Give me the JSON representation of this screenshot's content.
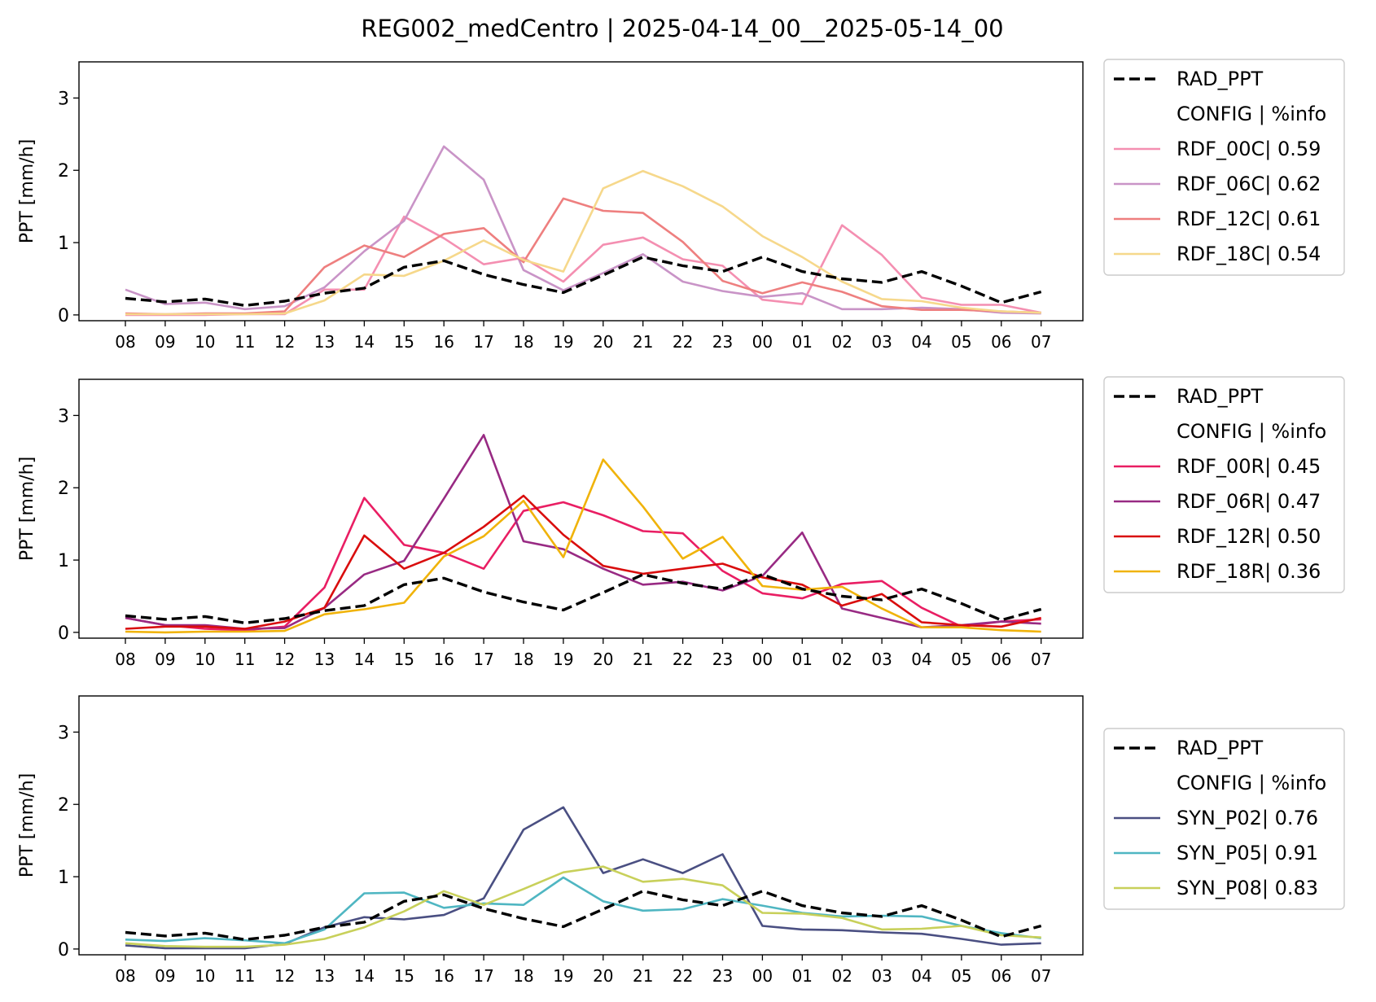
{
  "figure": {
    "title": "REG002_medCentro | 2025-04-14_00__2025-05-14_00"
  },
  "chart_data": [
    {
      "type": "line",
      "ylabel": "PPT [mm/h]",
      "ylim": [
        -0.08,
        3.5
      ],
      "yticks": [
        0,
        1,
        2,
        3
      ],
      "x": [
        "08",
        "09",
        "10",
        "11",
        "12",
        "13",
        "14",
        "15",
        "16",
        "17",
        "18",
        "19",
        "20",
        "21",
        "22",
        "23",
        "00",
        "01",
        "02",
        "03",
        "04",
        "05",
        "06",
        "07"
      ],
      "legend_header": "CONFIG  | %info",
      "legend_location": "outside-right",
      "series": [
        {
          "name": "RAD_PPT",
          "color": "#000000",
          "dashed": true,
          "values": [
            0.23,
            0.18,
            0.22,
            0.13,
            0.19,
            0.3,
            0.37,
            0.66,
            0.75,
            0.56,
            0.42,
            0.31,
            0.55,
            0.8,
            0.68,
            0.6,
            0.8,
            0.6,
            0.5,
            0.45,
            0.6,
            0.4,
            0.17,
            0.32
          ]
        },
        {
          "name": "RDF_00C| 0.59",
          "color": "#f48fb1",
          "values": [
            0.0,
            0.0,
            0.0,
            0.01,
            0.01,
            0.35,
            0.35,
            1.36,
            1.06,
            0.7,
            0.79,
            0.46,
            0.97,
            1.07,
            0.77,
            0.68,
            0.21,
            0.15,
            1.24,
            0.83,
            0.24,
            0.14,
            0.14,
            0.03
          ]
        },
        {
          "name": "RDF_06C| 0.62",
          "color": "#c994c7",
          "values": [
            0.35,
            0.15,
            0.17,
            0.08,
            0.12,
            0.38,
            0.88,
            1.3,
            2.33,
            1.87,
            0.62,
            0.34,
            0.58,
            0.84,
            0.46,
            0.33,
            0.25,
            0.3,
            0.08,
            0.08,
            0.1,
            0.08,
            0.03,
            0.02
          ]
        },
        {
          "name": "RDF_12C| 0.61",
          "color": "#ee7f7f",
          "values": [
            0.02,
            0.01,
            0.02,
            0.02,
            0.05,
            0.66,
            0.96,
            0.8,
            1.12,
            1.2,
            0.73,
            1.61,
            1.44,
            1.41,
            1.01,
            0.47,
            0.3,
            0.45,
            0.32,
            0.12,
            0.07,
            0.07,
            0.05,
            0.03
          ]
        },
        {
          "name": "RDF_18C| 0.54",
          "color": "#f6d88b",
          "values": [
            0.01,
            0.01,
            0.01,
            0.01,
            0.02,
            0.2,
            0.56,
            0.54,
            0.75,
            1.03,
            0.76,
            0.6,
            1.75,
            1.99,
            1.78,
            1.5,
            1.09,
            0.8,
            0.46,
            0.22,
            0.19,
            0.1,
            0.05,
            0.03
          ]
        }
      ]
    },
    {
      "type": "line",
      "ylabel": "PPT [mm/h]",
      "ylim": [
        -0.08,
        3.5
      ],
      "yticks": [
        0,
        1,
        2,
        3
      ],
      "x": [
        "08",
        "09",
        "10",
        "11",
        "12",
        "13",
        "14",
        "15",
        "16",
        "17",
        "18",
        "19",
        "20",
        "21",
        "22",
        "23",
        "00",
        "01",
        "02",
        "03",
        "04",
        "05",
        "06",
        "07"
      ],
      "legend_header": "CONFIG  | %info",
      "legend_location": "outside-right",
      "series": [
        {
          "name": "RAD_PPT",
          "color": "#000000",
          "dashed": true,
          "values": [
            0.23,
            0.18,
            0.22,
            0.13,
            0.19,
            0.3,
            0.37,
            0.66,
            0.75,
            0.56,
            0.42,
            0.31,
            0.55,
            0.8,
            0.68,
            0.6,
            0.8,
            0.6,
            0.5,
            0.45,
            0.6,
            0.4,
            0.17,
            0.32
          ]
        },
        {
          "name": "RDF_00R| 0.45",
          "color": "#e91e63",
          "values": [
            0.2,
            0.1,
            0.05,
            0.03,
            0.08,
            0.62,
            1.86,
            1.21,
            1.1,
            0.88,
            1.68,
            1.8,
            1.62,
            1.4,
            1.37,
            0.85,
            0.54,
            0.47,
            0.67,
            0.71,
            0.34,
            0.08,
            0.15,
            0.18
          ]
        },
        {
          "name": "RDF_06R| 0.47",
          "color": "#982a83",
          "values": [
            0.2,
            0.1,
            0.1,
            0.05,
            0.06,
            0.34,
            0.8,
            0.99,
            1.85,
            2.73,
            1.26,
            1.15,
            0.88,
            0.66,
            0.7,
            0.58,
            0.78,
            1.38,
            0.33,
            0.2,
            0.07,
            0.1,
            0.15,
            0.12
          ]
        },
        {
          "name": "RDF_12R| 0.50",
          "color": "#d90d0d",
          "values": [
            0.05,
            0.08,
            0.08,
            0.05,
            0.15,
            0.34,
            1.34,
            0.88,
            1.1,
            1.46,
            1.89,
            1.35,
            0.92,
            0.81,
            0.88,
            0.95,
            0.76,
            0.66,
            0.37,
            0.53,
            0.14,
            0.1,
            0.08,
            0.2
          ]
        },
        {
          "name": "RDF_18R| 0.36",
          "color": "#f0b30a",
          "values": [
            0.01,
            0.0,
            0.01,
            0.01,
            0.02,
            0.25,
            0.32,
            0.41,
            1.05,
            1.33,
            1.82,
            1.04,
            2.39,
            1.74,
            1.02,
            1.32,
            0.64,
            0.59,
            0.63,
            0.33,
            0.07,
            0.07,
            0.03,
            0.01
          ]
        }
      ]
    },
    {
      "type": "line",
      "ylabel": "PPT [mm/h]",
      "ylim": [
        -0.08,
        3.5
      ],
      "yticks": [
        0,
        1,
        2,
        3
      ],
      "x": [
        "08",
        "09",
        "10",
        "11",
        "12",
        "13",
        "14",
        "15",
        "16",
        "17",
        "18",
        "19",
        "20",
        "21",
        "22",
        "23",
        "00",
        "01",
        "02",
        "03",
        "04",
        "05",
        "06",
        "07"
      ],
      "legend_header": "CONFIG  | %info",
      "legend_location": "outside-right",
      "series": [
        {
          "name": "RAD_PPT",
          "color": "#000000",
          "dashed": true,
          "values": [
            0.23,
            0.18,
            0.22,
            0.13,
            0.19,
            0.3,
            0.37,
            0.66,
            0.75,
            0.56,
            0.42,
            0.31,
            0.55,
            0.8,
            0.68,
            0.6,
            0.8,
            0.6,
            0.5,
            0.45,
            0.6,
            0.4,
            0.17,
            0.32
          ]
        },
        {
          "name": "SYN_P02| 0.76",
          "color": "#4a4f82",
          "values": [
            0.05,
            0.01,
            0.01,
            0.01,
            0.07,
            0.3,
            0.44,
            0.41,
            0.47,
            0.7,
            1.65,
            1.96,
            1.05,
            1.24,
            1.05,
            1.31,
            0.32,
            0.27,
            0.26,
            0.23,
            0.21,
            0.14,
            0.06,
            0.08
          ]
        },
        {
          "name": "SYN_P05| 0.91",
          "color": "#4fb6c2",
          "values": [
            0.13,
            0.11,
            0.15,
            0.12,
            0.08,
            0.27,
            0.77,
            0.78,
            0.57,
            0.63,
            0.61,
            0.99,
            0.66,
            0.53,
            0.55,
            0.69,
            0.6,
            0.5,
            0.45,
            0.46,
            0.45,
            0.32,
            0.22,
            0.15
          ]
        },
        {
          "name": "SYN_P08| 0.83",
          "color": "#c8d05a",
          "values": [
            0.08,
            0.04,
            0.03,
            0.03,
            0.06,
            0.14,
            0.3,
            0.52,
            0.8,
            0.61,
            0.83,
            1.06,
            1.14,
            0.93,
            0.97,
            0.88,
            0.5,
            0.49,
            0.43,
            0.27,
            0.28,
            0.32,
            0.19,
            0.16
          ]
        }
      ]
    }
  ]
}
